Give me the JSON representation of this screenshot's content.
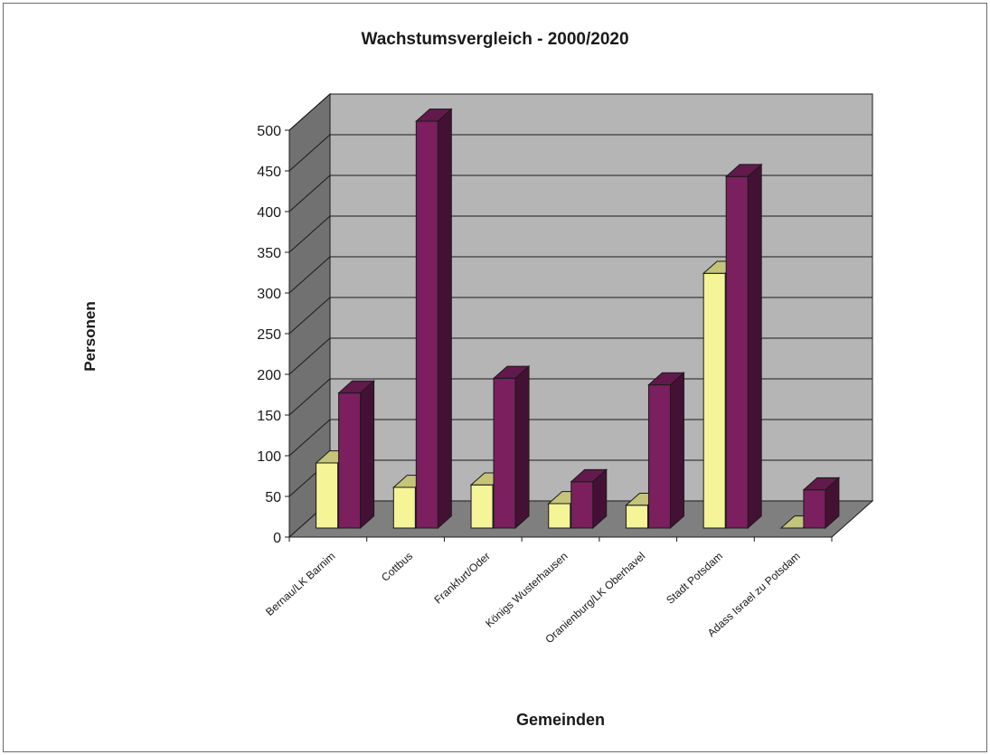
{
  "chart_data": {
    "type": "bar",
    "title": "Wachstumsvergleich - 2000/2020",
    "xlabel": "Gemeinden",
    "ylabel": "Personen",
    "ylim": [
      0,
      500
    ],
    "yticks": [
      0,
      50,
      100,
      150,
      200,
      250,
      300,
      350,
      400,
      450,
      500
    ],
    "grid": true,
    "legend": "none",
    "categories": [
      "Bernau/LK Barnim",
      "Cottbus",
      "Frankfurt/Oder",
      "Königs Wusterhausen",
      "Oranienburg/LK Oberhavel",
      "Stadt Potsdam",
      "Adass Israel zu Potsdam"
    ],
    "series": [
      {
        "values": [
          80,
          50,
          53,
          30,
          28,
          313,
          0
        ],
        "color": "#f5f598"
      },
      {
        "values": [
          166,
          500,
          184,
          57,
          176,
          432,
          47
        ],
        "color": "#7b1f5e"
      }
    ]
  }
}
